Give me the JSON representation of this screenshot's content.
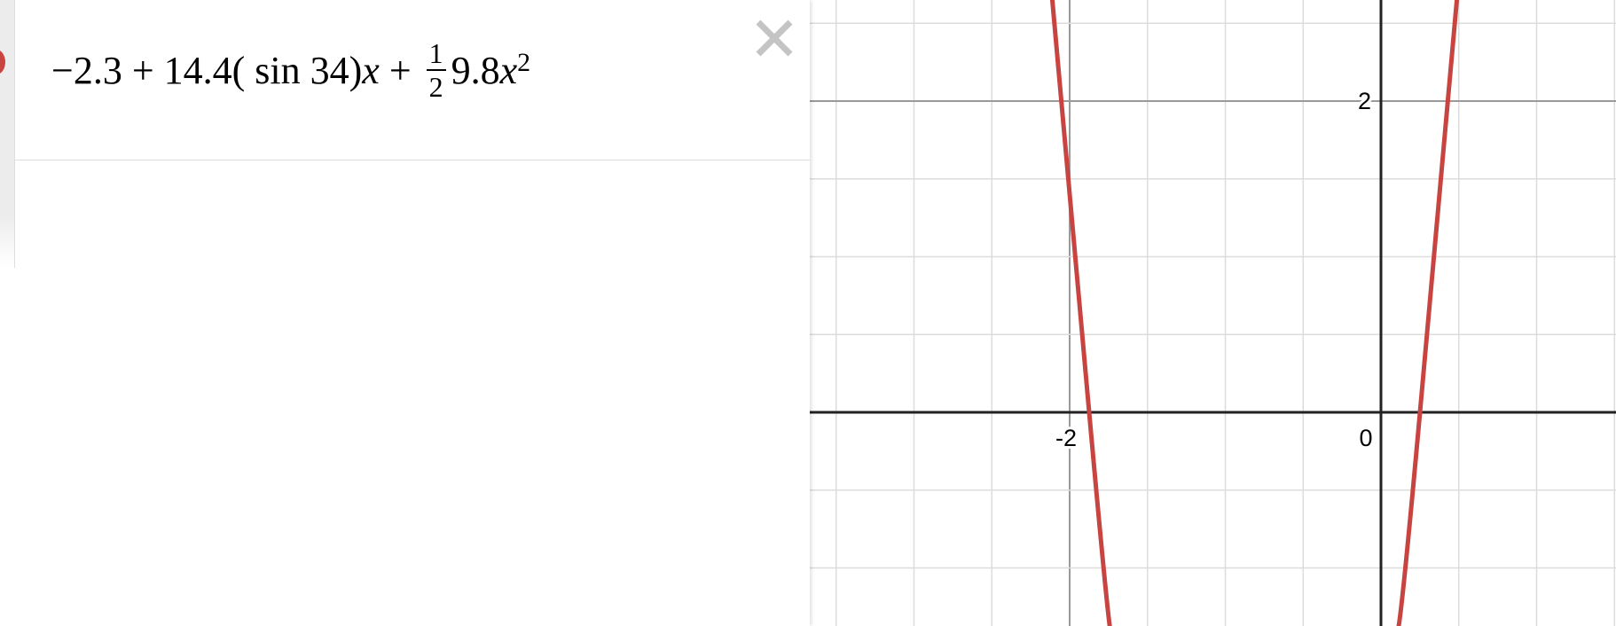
{
  "expression": {
    "lead": "−2.3 + 14.4( sin 34)",
    "var1": "x",
    "plus": " + ",
    "numerator": "1",
    "denominator": "2",
    "coef": "9.8",
    "var2": "x",
    "exponent": "2"
  },
  "graph": {
    "x_tick_labels": [
      "-2",
      "0"
    ],
    "y_tick_labels": [
      "2"
    ]
  }
}
